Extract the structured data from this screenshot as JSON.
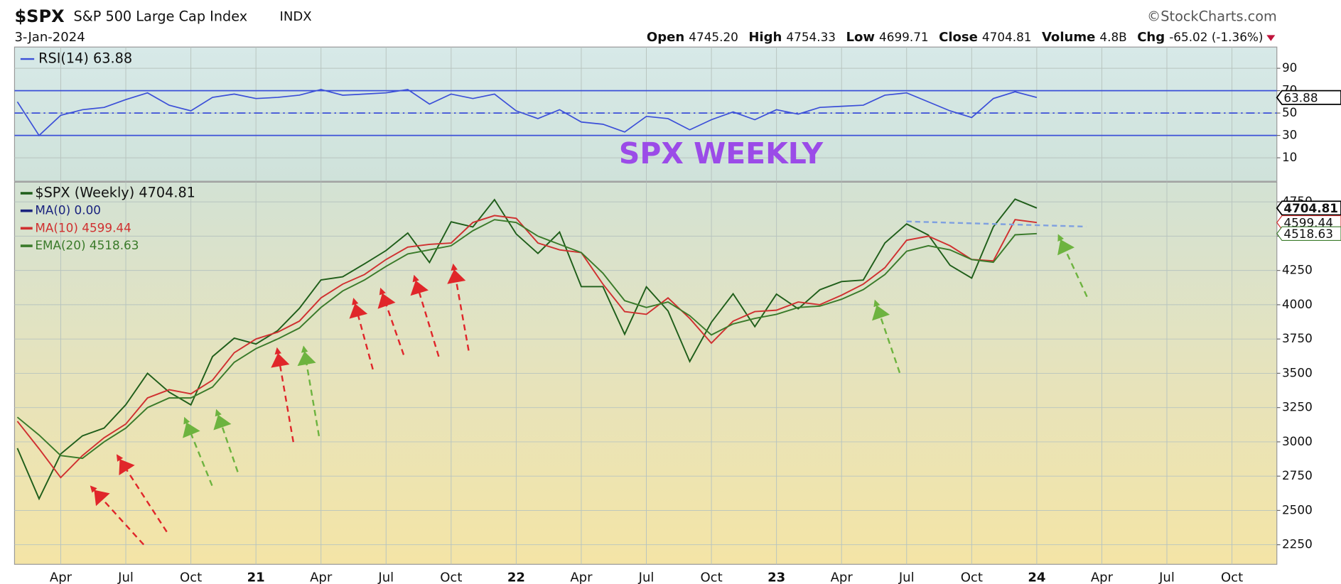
{
  "header": {
    "symbol": "$SPX",
    "name": "S&P 500 Large Cap Index",
    "exchange": "INDX",
    "credit": "©StockCharts.com",
    "date": "3-Jan-2024",
    "quote": [
      {
        "label": "Open",
        "value": "4745.20"
      },
      {
        "label": "High",
        "value": "4754.33"
      },
      {
        "label": "Low",
        "value": "4699.71"
      },
      {
        "label": "Close",
        "value": "4704.81"
      },
      {
        "label": "Volume",
        "value": "4.8B"
      },
      {
        "label": "Chg",
        "value": "-65.02 (-1.36%)"
      }
    ]
  },
  "chart_data": [
    {
      "type": "line",
      "annotation": "SPX WEEKLY",
      "ylim": [
        -11,
        109
      ],
      "yticks": [
        10,
        30,
        50,
        70,
        90
      ],
      "grid": true,
      "levels": [
        {
          "value": 70,
          "style": "solid"
        },
        {
          "value": 50,
          "style": "dashdot"
        },
        {
          "value": 30,
          "style": "solid"
        }
      ],
      "series": [
        {
          "name": "RSI(14) 63.88",
          "color": "#3b4fd8",
          "values": [
            60,
            30,
            48,
            53,
            55,
            62,
            68,
            57,
            52,
            64,
            67,
            63,
            64,
            66,
            71,
            66,
            67,
            68,
            71,
            58,
            67,
            63,
            67,
            52,
            45,
            53,
            42,
            40,
            33,
            47,
            45,
            35,
            44,
            51,
            44,
            53,
            49,
            55,
            56,
            57,
            66,
            68,
            60,
            52,
            46,
            63,
            69,
            63.88,
            null,
            null,
            null,
            null,
            null,
            null,
            null,
            null,
            null,
            null
          ]
        }
      ]
    },
    {
      "type": "line",
      "ylim": [
        2107,
        4894
      ],
      "yticks": [
        2250,
        2500,
        2750,
        3000,
        3250,
        3500,
        3750,
        4000,
        4250,
        4500,
        4750
      ],
      "grid": true,
      "x": [
        null,
        null,
        "Apr",
        null,
        null,
        "Jul",
        null,
        null,
        "Oct",
        null,
        null,
        "21",
        null,
        null,
        "Apr",
        null,
        null,
        "Jul",
        null,
        null,
        "Oct",
        null,
        null,
        "22",
        null,
        null,
        "Apr",
        null,
        null,
        "Jul",
        null,
        null,
        "Oct",
        null,
        null,
        "23",
        null,
        null,
        "Apr",
        null,
        null,
        "Jul",
        null,
        null,
        "Oct",
        null,
        null,
        "24",
        null,
        null,
        "Apr",
        null,
        null,
        "Jul",
        null,
        null,
        "Oct",
        null
      ],
      "series": [
        {
          "name": "$SPX (Weekly) 4704.81",
          "color": "#1f5e1a",
          "values": [
            2954,
            2585,
            2912,
            3044,
            3100,
            3271,
            3500,
            3363,
            3270,
            3622,
            3756,
            3714,
            3811,
            3973,
            4181,
            4204,
            4298,
            4395,
            4523,
            4308,
            4605,
            4567,
            4766,
            4516,
            4374,
            4530,
            4132,
            4132,
            3785,
            4130,
            3955,
            3586,
            3872,
            4080,
            3840,
            4077,
            3970,
            4109,
            4169,
            4180,
            4450,
            4589,
            4508,
            4288,
            4194,
            4568,
            4770,
            4704.81,
            null,
            null,
            null,
            null,
            null,
            null,
            null,
            null,
            null,
            null
          ]
        },
        {
          "name": "MA(10) 4599.44",
          "color": "#d03030",
          "values": [
            3150,
            2950,
            2740,
            2900,
            3030,
            3130,
            3320,
            3380,
            3350,
            3450,
            3650,
            3750,
            3800,
            3880,
            4050,
            4150,
            4220,
            4330,
            4420,
            4440,
            4450,
            4600,
            4650,
            4630,
            4450,
            4400,
            4380,
            4150,
            3950,
            3930,
            4050,
            3900,
            3720,
            3880,
            3950,
            3960,
            4020,
            4000,
            4070,
            4150,
            4270,
            4470,
            4500,
            4430,
            4330,
            4320,
            4620,
            4599.44,
            null,
            null,
            null,
            null,
            null,
            null,
            null,
            null,
            null,
            null
          ]
        },
        {
          "name": "EMA(20) 4518.63",
          "color": "#3a7a2a",
          "values": [
            3180,
            3050,
            2900,
            2880,
            3000,
            3100,
            3250,
            3320,
            3320,
            3400,
            3580,
            3680,
            3750,
            3830,
            3980,
            4100,
            4180,
            4280,
            4370,
            4400,
            4430,
            4540,
            4620,
            4600,
            4500,
            4440,
            4380,
            4230,
            4030,
            3980,
            4020,
            3920,
            3780,
            3860,
            3900,
            3930,
            3980,
            3990,
            4040,
            4110,
            4220,
            4390,
            4430,
            4400,
            4330,
            4310,
            4510,
            4518.63,
            null,
            null,
            null,
            null,
            null,
            null,
            null,
            null,
            null,
            null
          ]
        }
      ],
      "legend_extra": [
        {
          "name": "MA(0) 0.00",
          "color": "#1a237e"
        }
      ]
    }
  ]
}
